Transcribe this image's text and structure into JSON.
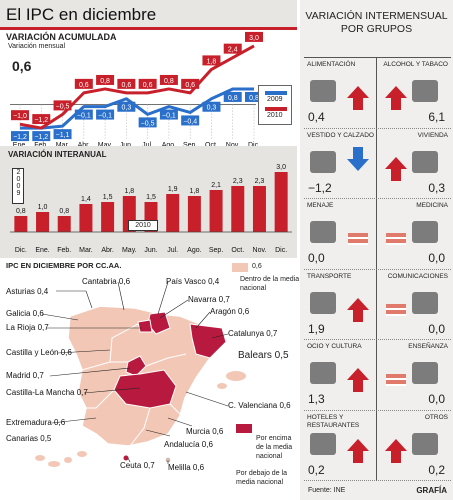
{
  "title": "El IPC en diciembre",
  "acumulada": {
    "heading": "VARIACIÓN ACUMULADA",
    "subheading": "Variación mensual",
    "value_small": "0,6",
    "legend": [
      "2009",
      "2010"
    ]
  },
  "interanual": {
    "heading": "VARIACIÓN INTERANUAL",
    "year_top": "2009",
    "year_bottom": "2010"
  },
  "ccaa": {
    "heading": "IPC EN DICIEMBRE POR CC.AA.",
    "legend_value": "0,6",
    "legend_within": "Dentro de la media nacional",
    "legend_above": "Por encima de la media nacional",
    "legend_below": "Por debajo de la media nacional",
    "regions": [
      {
        "label": "Asturias 0,4"
      },
      {
        "label": "Cantabria 0,6"
      },
      {
        "label": "País Vasco 0,4"
      },
      {
        "label": "Galicia 0,6"
      },
      {
        "label": "Navarra 0,7"
      },
      {
        "label": "La Rioja 0,7"
      },
      {
        "label": "Aragón 0,6"
      },
      {
        "label": "Catalunya 0,7"
      },
      {
        "label": "Castilla y León 0,6"
      },
      {
        "label": "Balears 0,5"
      },
      {
        "label": "Madrid 0,7"
      },
      {
        "label": "Castilla-La Mancha 0,7"
      },
      {
        "label": "C. Valenciana 0,6"
      },
      {
        "label": "Extremadura 0,6"
      },
      {
        "label": "Murcia 0,6"
      },
      {
        "label": "Andalucía 0,6"
      },
      {
        "label": "Canarias 0,5"
      },
      {
        "label": "Ceuta 0,7"
      },
      {
        "label": "Melilla 0,6"
      }
    ]
  },
  "grupos": {
    "heading_1": "VARIACIÓN INTERMENSUAL",
    "heading_2": "POR GRUPOS",
    "items": [
      {
        "name": "ALIMENTACIÓN",
        "value": "0,4",
        "dir": "up"
      },
      {
        "name": "ALCOHOL Y TABACO",
        "value": "6,1",
        "dir": "up"
      },
      {
        "name": "VESTIDO Y CALZADO",
        "value": "−1,2",
        "dir": "down"
      },
      {
        "name": "VIVIENDA",
        "value": "0,3",
        "dir": "up"
      },
      {
        "name": "MENAJE",
        "value": "0,0",
        "dir": "flat"
      },
      {
        "name": "MEDICINA",
        "value": "0,0",
        "dir": "flat"
      },
      {
        "name": "TRANSPORTE",
        "value": "1,9",
        "dir": "up"
      },
      {
        "name": "COMUNICACIONES",
        "value": "0,0",
        "dir": "flat"
      },
      {
        "name": "OCIO Y CULTURA",
        "value": "1,3",
        "dir": "up"
      },
      {
        "name": "ENSEÑANZA",
        "value": "0,0",
        "dir": "flat"
      },
      {
        "name": "HOTELES Y RESTAURANTES",
        "value": "0,2",
        "dir": "up"
      },
      {
        "name": "OTROS",
        "value": "0,2",
        "dir": "up"
      }
    ]
  },
  "footer": {
    "source": "Fuente: INE",
    "brand": "GRAFÍA"
  },
  "colors": {
    "red": "#c8202b",
    "blue": "#2a6fc9",
    "pink": "#f2c7b5",
    "dark": "#222222"
  },
  "chart_data": [
    {
      "type": "line",
      "title": "VARIACIÓN ACUMULADA",
      "categories": [
        "Ene.",
        "Feb.",
        "Mar.",
        "Abr.",
        "May.",
        "Jun.",
        "Jul.",
        "Ago.",
        "Sep.",
        "Oct.",
        "Nov.",
        "Dic."
      ],
      "series": [
        {
          "name": "2009",
          "values": [
            -1.2,
            -1.2,
            -1.1,
            -0.1,
            -0.1,
            0.3,
            -0.5,
            -0.1,
            -0.4,
            0.3,
            0.8,
            0.8
          ]
        },
        {
          "name": "2010",
          "values": [
            -1.0,
            -1.2,
            -0.5,
            0.6,
            0.8,
            0.6,
            0.6,
            0.8,
            0.6,
            1.8,
            2.4,
            3.0
          ]
        }
      ]
    },
    {
      "type": "bar",
      "title": "VARIACIÓN INTERANUAL",
      "categories": [
        "Dic.",
        "Ene.",
        "Feb.",
        "Mar.",
        "Abr.",
        "May.",
        "Jun.",
        "Jul.",
        "Ago.",
        "Sep.",
        "Oct.",
        "Nov.",
        "Dic."
      ],
      "values": [
        0.8,
        1.0,
        0.8,
        1.4,
        1.5,
        1.8,
        1.5,
        1.9,
        1.8,
        2.1,
        2.3,
        2.3,
        3.0
      ],
      "labels": [
        "0,8",
        "1,0",
        "0,8",
        "1,4",
        "1,5",
        "1,8",
        "1,5",
        "1,9",
        "1,8",
        "2,1",
        "2,3",
        "2,3",
        "3,0"
      ],
      "ylim": [
        0,
        3.2
      ]
    }
  ]
}
